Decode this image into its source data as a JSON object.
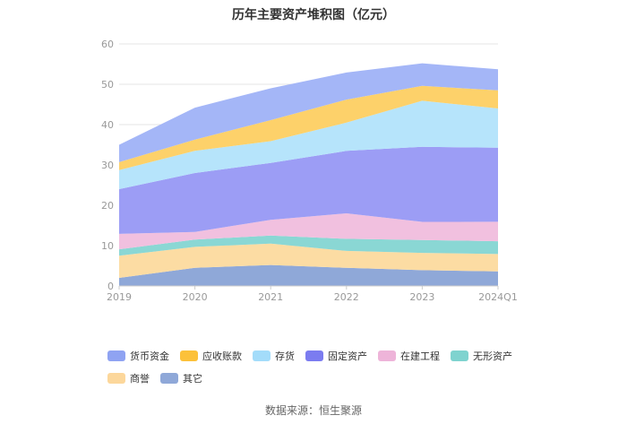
{
  "chart_data": {
    "type": "area",
    "title": "历年主要资产堆积图（亿元）",
    "stacked": true,
    "x": [
      "2019",
      "2020",
      "2021",
      "2022",
      "2023",
      "2024Q1"
    ],
    "ylim": [
      0,
      60
    ],
    "yticks": [
      0,
      10,
      20,
      30,
      40,
      50,
      60
    ],
    "grid": true,
    "legend_position": "bottom",
    "series": [
      {
        "name": "其它",
        "color": "#8fa8d8",
        "values": [
          2.0,
          4.5,
          5.2,
          4.5,
          3.9,
          3.6
        ]
      },
      {
        "name": "商誉",
        "color": "#fcdca3",
        "values": [
          5.5,
          5.2,
          5.3,
          4.2,
          4.3,
          4.3
        ]
      },
      {
        "name": "无形资产",
        "color": "#8ad7d4",
        "values": [
          1.6,
          1.8,
          2.0,
          3.0,
          3.2,
          3.2
        ]
      },
      {
        "name": "在建工程",
        "color": "#f1c0df",
        "values": [
          3.8,
          1.9,
          3.9,
          6.3,
          4.5,
          4.8
        ]
      },
      {
        "name": "固定资产",
        "color": "#9c9df5",
        "values": [
          11.1,
          14.6,
          14.1,
          15.5,
          18.6,
          18.4
        ]
      },
      {
        "name": "存货",
        "color": "#b6e4fb",
        "values": [
          4.7,
          5.5,
          5.4,
          7.0,
          11.4,
          9.7
        ]
      },
      {
        "name": "应收账款",
        "color": "#fdd16a",
        "values": [
          2.0,
          2.8,
          5.2,
          5.7,
          3.7,
          4.5
        ]
      },
      {
        "name": "货币资金",
        "color": "#a4b6f7",
        "values": [
          4.3,
          7.9,
          7.9,
          6.7,
          5.6,
          5.2
        ]
      }
    ]
  },
  "legend": [
    {
      "label": "货币资金",
      "color": "#8fa3f2"
    },
    {
      "label": "应收账款",
      "color": "#fcc13a"
    },
    {
      "label": "存货",
      "color": "#a3dcfa"
    },
    {
      "label": "固定资产",
      "color": "#7b7cf0"
    },
    {
      "label": "在建工程",
      "color": "#eeb4d9"
    },
    {
      "label": "无形资产",
      "color": "#7fd3cf"
    },
    {
      "label": "商誉",
      "color": "#fcd79b"
    },
    {
      "label": "其它",
      "color": "#8fa8d8"
    }
  ],
  "source": "数据来源：恒生聚源"
}
